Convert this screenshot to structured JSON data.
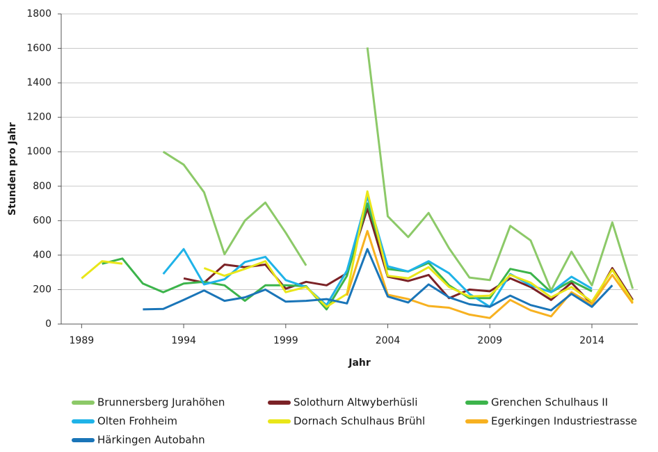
{
  "chart_data": {
    "type": "line",
    "y_label": "Stunden pro Jahr",
    "x_label": "Jahr",
    "x": [
      1989,
      1990,
      1991,
      1992,
      1993,
      1994,
      1995,
      1996,
      1997,
      1998,
      1999,
      2000,
      2001,
      2002,
      2003,
      2004,
      2005,
      2006,
      2007,
      2008,
      2009,
      2010,
      2011,
      2012,
      2013,
      2014,
      2015,
      2016
    ],
    "xlim": [
      1988,
      2016.25
    ],
    "xticks": [
      1989,
      1994,
      1999,
      2004,
      2009,
      2014
    ],
    "ylim": [
      0,
      1800
    ],
    "yticks": [
      0,
      200,
      400,
      600,
      800,
      1000,
      1200,
      1400,
      1600,
      1800
    ],
    "grid": true,
    "legend": "bottom",
    "series": [
      {
        "name": "Brunnersberg Jurahöhen",
        "color": "#8cc968",
        "values": [
          null,
          null,
          null,
          null,
          1000,
          925,
          765,
          405,
          600,
          705,
          530,
          340,
          null,
          null,
          1605,
          625,
          505,
          645,
          440,
          270,
          255,
          570,
          485,
          195,
          420,
          225,
          590,
          205
        ]
      },
      {
        "name": "Solothurn Altwyberhüsli",
        "color": "#7b2226",
        "values": [
          null,
          null,
          null,
          null,
          null,
          265,
          240,
          345,
          330,
          345,
          205,
          245,
          225,
          295,
          670,
          275,
          250,
          285,
          150,
          200,
          190,
          265,
          215,
          140,
          240,
          115,
          325,
          140
        ]
      },
      {
        "name": "Grenchen Schulhaus II",
        "color": "#3cb44b",
        "values": [
          null,
          350,
          380,
          235,
          185,
          235,
          245,
          225,
          135,
          225,
          225,
          220,
          85,
          280,
          700,
          320,
          305,
          355,
          225,
          150,
          150,
          320,
          295,
          185,
          250,
          190,
          null,
          null
        ]
      },
      {
        "name": "Olten Frohheim",
        "color": "#1fb3e8",
        "values": [
          null,
          null,
          null,
          null,
          290,
          435,
          230,
          260,
          360,
          390,
          255,
          215,
          110,
          310,
          740,
          335,
          305,
          365,
          295,
          175,
          100,
          290,
          225,
          185,
          275,
          205,
          null,
          null
        ]
      },
      {
        "name": "Dornach Schulhaus Brühl",
        "color": "#e9e619",
        "values": [
          265,
          365,
          350,
          null,
          null,
          null,
          325,
          280,
          320,
          365,
          185,
          215,
          100,
          175,
          770,
          280,
          265,
          330,
          215,
          160,
          165,
          285,
          240,
          155,
          215,
          130,
          315,
          130
        ]
      },
      {
        "name": "Egerkingen Industriestrasse",
        "color": "#f7b120",
        "values": [
          null,
          null,
          null,
          null,
          null,
          null,
          null,
          null,
          null,
          null,
          null,
          null,
          null,
          165,
          540,
          170,
          145,
          105,
          95,
          55,
          35,
          140,
          80,
          45,
          185,
          115,
          285,
          120
        ]
      },
      {
        "name": "Härkingen Autobahn",
        "color": "#1a75b8",
        "values": [
          null,
          null,
          null,
          85,
          88,
          140,
          195,
          135,
          155,
          200,
          130,
          135,
          145,
          120,
          435,
          160,
          125,
          230,
          155,
          115,
          100,
          165,
          110,
          80,
          175,
          100,
          225,
          null
        ]
      }
    ]
  }
}
